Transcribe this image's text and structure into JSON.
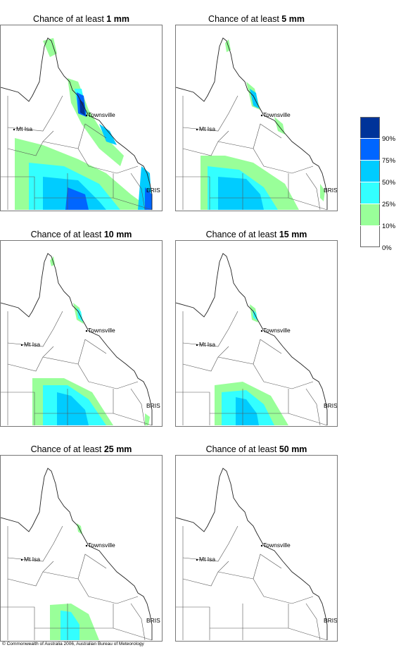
{
  "panels": [
    {
      "prefix": "Chance of at least ",
      "amount": "1 mm"
    },
    {
      "prefix": "Chance of at least ",
      "amount": "5 mm"
    },
    {
      "prefix": "Chance of at least ",
      "amount": "10 mm"
    },
    {
      "prefix": "Chance of at least ",
      "amount": "15 mm"
    },
    {
      "prefix": "Chance of at least ",
      "amount": "25 mm"
    },
    {
      "prefix": "Chance of at least ",
      "amount": "50 mm"
    }
  ],
  "places": {
    "townsville": "Townsville",
    "mt_isa": "Mt Isa",
    "bris": "BRIS"
  },
  "legend": {
    "labels": [
      "90%",
      "75%",
      "50%",
      "25%",
      "10%",
      "0%"
    ],
    "colors": [
      "#003399",
      "#0066ff",
      "#00ccff",
      "#33ffff",
      "#99ff99",
      "#ffffff"
    ]
  },
  "copyright": "© Commonwealth of Australia 2006, Australian Bureau of Meteorology"
}
